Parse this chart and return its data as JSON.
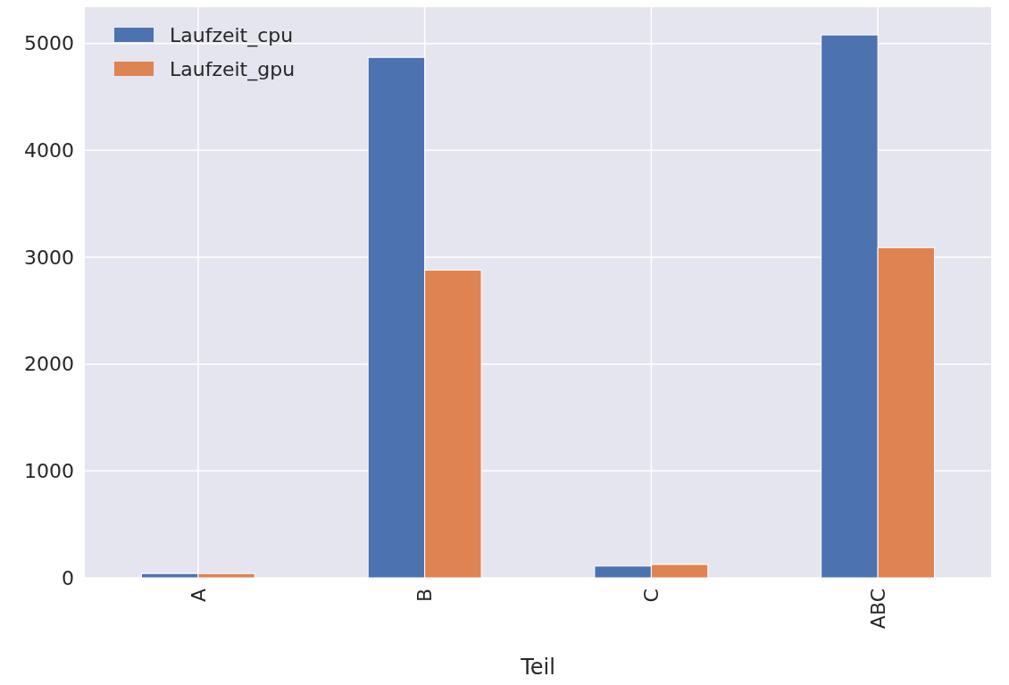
{
  "chart_data": {
    "type": "bar",
    "xlabel": "Teil",
    "categories": [
      "A",
      "B",
      "C",
      "ABC"
    ],
    "series": [
      {
        "name": "Laufzeit_cpu",
        "color": "#4c72b0",
        "values": [
          40,
          4870,
          110,
          5080
        ]
      },
      {
        "name": "Laufzeit_gpu",
        "color": "#dd8452",
        "values": [
          40,
          2880,
          125,
          3090
        ]
      }
    ],
    "ylim": [
      0,
      5340
    ],
    "yticks": [
      0,
      1000,
      2000,
      3000,
      4000,
      5000
    ],
    "grid": true,
    "legend": "top left"
  }
}
